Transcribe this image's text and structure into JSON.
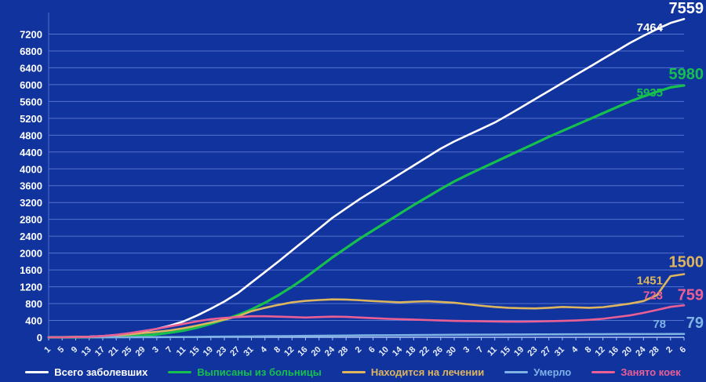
{
  "chart_data": {
    "type": "line",
    "title": "",
    "background": "#11339e",
    "grid": true,
    "grid_color": "#5472cf",
    "axis_color": "#aac4f5",
    "text_color": "#ffffff",
    "xtick_color": "#e8efff",
    "legend_position": "bottom",
    "ylim": [
      0,
      7600
    ],
    "yticks": [
      0,
      400,
      800,
      1200,
      1600,
      2000,
      2400,
      2800,
      3200,
      3600,
      4000,
      4400,
      4800,
      5200,
      5600,
      6000,
      6400,
      6800,
      7200
    ],
    "x_labels": [
      "1",
      "5",
      "9",
      "13",
      "17",
      "21",
      "25",
      "29",
      "3",
      "7",
      "11",
      "15",
      "19",
      "23",
      "27",
      "31",
      "4",
      "8",
      "12",
      "16",
      "20",
      "24",
      "28",
      "2",
      "6",
      "10",
      "14",
      "18",
      "22",
      "26",
      "30",
      "3",
      "7",
      "11",
      "15",
      "19",
      "23",
      "27",
      "31",
      "4",
      "8",
      "12",
      "16",
      "20",
      "24",
      "28",
      "2",
      "6"
    ],
    "series": [
      {
        "name": "Всего заболевших",
        "color": "#ffffff",
        "final_label": "7559",
        "prev_label": "7464",
        "final_dy": -7,
        "prev_dy": 16,
        "prev_dx": 52,
        "values": [
          1,
          3,
          8,
          15,
          30,
          55,
          90,
          140,
          200,
          280,
          380,
          520,
          680,
          850,
          1050,
          1300,
          1550,
          1800,
          2060,
          2320,
          2580,
          2840,
          3060,
          3280,
          3480,
          3680,
          3880,
          4080,
          4280,
          4480,
          4650,
          4800,
          4950,
          5100,
          5280,
          5470,
          5660,
          5850,
          6040,
          6230,
          6420,
          6610,
          6800,
          6990,
          7160,
          7320,
          7464,
          7559
        ]
      },
      {
        "name": "Выписаны из больницы",
        "color": "#16c04c",
        "final_label": "5980",
        "prev_label": "5935",
        "final_dy": -8,
        "prev_dy": 14,
        "prev_dx": 52,
        "values": [
          0,
          0,
          0,
          2,
          5,
          10,
          20,
          40,
          70,
          110,
          160,
          230,
          320,
          420,
          530,
          660,
          820,
          1000,
          1200,
          1420,
          1660,
          1900,
          2120,
          2340,
          2540,
          2740,
          2940,
          3140,
          3330,
          3520,
          3700,
          3860,
          4010,
          4160,
          4310,
          4460,
          4610,
          4760,
          4900,
          5040,
          5180,
          5320,
          5460,
          5600,
          5720,
          5830,
          5935,
          5980
        ]
      },
      {
        "name": "Находится на лечении",
        "color": "#ddb55e",
        "final_label": "1500",
        "prev_label": "1451",
        "final_dy": -9,
        "prev_dy": 13,
        "prev_dx": 52,
        "values": [
          1,
          3,
          8,
          13,
          25,
          45,
          70,
          100,
          130,
          165,
          215,
          280,
          350,
          420,
          500,
          620,
          700,
          770,
          830,
          865,
          885,
          900,
          895,
          880,
          860,
          845,
          830,
          845,
          855,
          840,
          820,
          785,
          750,
          720,
          700,
          690,
          685,
          700,
          720,
          710,
          700,
          715,
          755,
          800,
          860,
          1000,
          1451,
          1500
        ]
      },
      {
        "name": "Умерло",
        "color": "#7fb2e5",
        "final_label": "79",
        "prev_label": "78",
        "final_dy": -8,
        "prev_dy": -8,
        "prev_dx": 48,
        "values": [
          0,
          0,
          0,
          0,
          1,
          1,
          2,
          3,
          4,
          5,
          7,
          9,
          12,
          15,
          18,
          21,
          24,
          27,
          30,
          33,
          36,
          39,
          42,
          45,
          47,
          49,
          51,
          53,
          55,
          57,
          59,
          61,
          63,
          64,
          66,
          67,
          69,
          70,
          71,
          72,
          73,
          74,
          75,
          76,
          77,
          77,
          78,
          79
        ]
      },
      {
        "name": "Занято коек",
        "color": "#ea5f94",
        "final_label": "759",
        "prev_label": "723",
        "final_dy": -7,
        "prev_dy": -8,
        "prev_dx": 52,
        "values": [
          0,
          0,
          5,
          10,
          30,
          60,
          100,
          150,
          200,
          260,
          320,
          380,
          430,
          460,
          480,
          500,
          500,
          490,
          480,
          470,
          480,
          490,
          485,
          470,
          455,
          440,
          430,
          420,
          410,
          400,
          390,
          385,
          380,
          375,
          372,
          370,
          375,
          382,
          390,
          400,
          415,
          440,
          480,
          520,
          580,
          650,
          723,
          759
        ]
      }
    ]
  }
}
